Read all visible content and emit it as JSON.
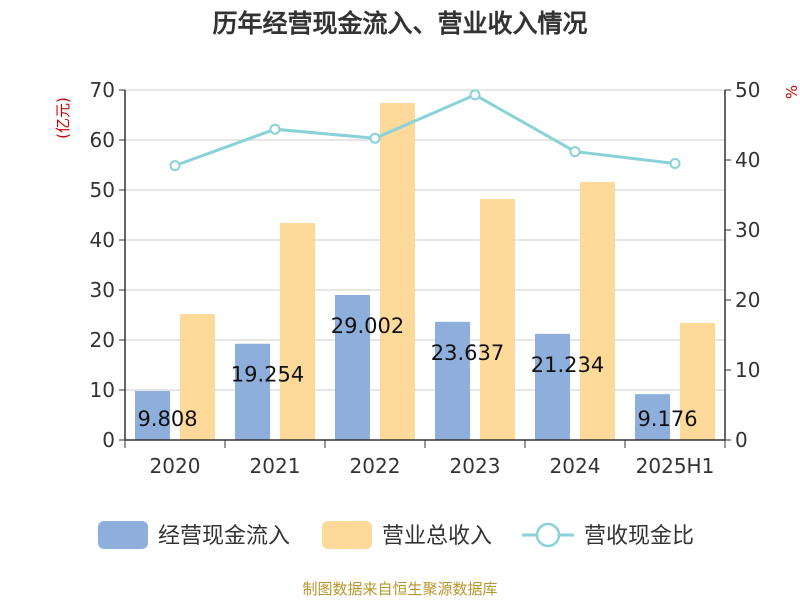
{
  "chart_data": {
    "type": "bar",
    "title": "历年经营现金流入、营业收入情况",
    "ylabel": "(亿元)",
    "y2label": "%",
    "categories": [
      "2020",
      "2021",
      "2022",
      "2023",
      "2024",
      "2025H1"
    ],
    "ylim": [
      0,
      70
    ],
    "yticks": [
      0,
      10,
      20,
      30,
      40,
      50,
      60,
      70
    ],
    "y2lim": [
      0,
      50
    ],
    "y2ticks": [
      0,
      10,
      20,
      30,
      40,
      50
    ],
    "grid": true,
    "legend_position": "bottom",
    "series": [
      {
        "name": "经营现金流入",
        "kind": "bar",
        "axis": "left",
        "color": "#8eaedb",
        "values": [
          9.808,
          19.254,
          29.002,
          23.637,
          21.234,
          9.176
        ],
        "labels": [
          "9.808",
          "19.254",
          "29.002",
          "23.637",
          "21.234",
          "9.176"
        ]
      },
      {
        "name": "营业总收入",
        "kind": "bar",
        "axis": "left",
        "color": "#fdd99a",
        "values": [
          25.2,
          43.4,
          67.4,
          48.2,
          51.6,
          23.4
        ]
      },
      {
        "name": "营收现金比",
        "kind": "line",
        "axis": "right",
        "color": "#89d2d8",
        "values": [
          39.2,
          44.4,
          43.1,
          49.3,
          41.2,
          39.5
        ]
      }
    ],
    "source": "制图数据来自恒生聚源数据库"
  }
}
